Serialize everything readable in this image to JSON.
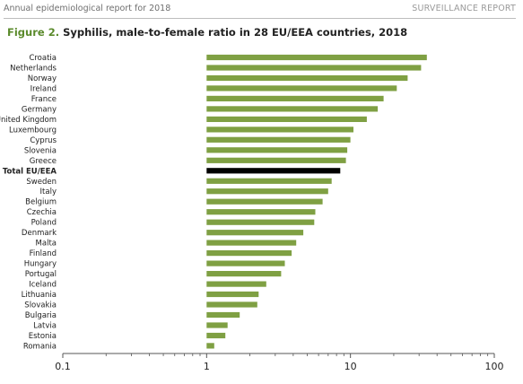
{
  "header": {
    "left": "Annual epidemiological report for 2018",
    "right": "SURVEILLANCE REPORT"
  },
  "figure": {
    "label": "Figure 2.",
    "title": "Syphilis, male-to-female ratio in 28 EU/EEA countries, 2018"
  },
  "colors": {
    "bar": "#7fa043",
    "highlight": "#000000",
    "axis": "#555555",
    "fig_label": "#5a8a2b"
  },
  "chart_data": {
    "type": "bar",
    "orientation": "horizontal",
    "title": "Syphilis, male-to-female ratio in 28 EU/EEA countries, 2018",
    "x_scale": "log",
    "xlim": [
      0.1,
      100
    ],
    "x_ticks": [
      "0.1",
      "1",
      "10",
      "100"
    ],
    "highlight_category": "Total EU/EEA",
    "grid": false,
    "categories": [
      "Croatia",
      "Netherlands",
      "Norway",
      "Ireland",
      "France",
      "Germany",
      "United Kingdom",
      "Luxembourg",
      "Cyprus",
      "Slovenia",
      "Greece",
      "Total EU/EEA",
      "Sweden",
      "Italy",
      "Belgium",
      "Czechia",
      "Poland",
      "Denmark",
      "Malta",
      "Finland",
      "Hungary",
      "Portugal",
      "Iceland",
      "Lithuania",
      "Slovakia",
      "Bulgaria",
      "Latvia",
      "Estonia",
      "Romania"
    ],
    "values": [
      34,
      31,
      25,
      21,
      17,
      15.5,
      13,
      10.5,
      10,
      9.5,
      9.3,
      8.5,
      7.4,
      7,
      6.4,
      5.7,
      5.6,
      4.7,
      4.2,
      3.9,
      3.5,
      3.3,
      2.6,
      2.3,
      2.25,
      1.7,
      1.4,
      1.35,
      1.13
    ]
  }
}
